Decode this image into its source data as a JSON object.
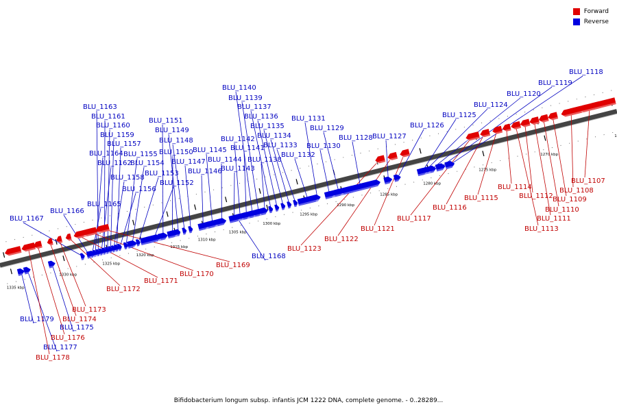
{
  "legend": {
    "forward_label": "Forward",
    "reverse_label": "Reverse",
    "forward_color": "#e00000",
    "reverse_color": "#0000e0"
  },
  "label_colors": {
    "forward": "#c00000",
    "reverse": "#0000c0"
  },
  "caption": "Bifidobacterium longum subsp. infantis JCM 1222 DNA, complete genome. - 0..28289...",
  "ruler": [
    {
      "text": "1265 kbp",
      "pos": 0.0
    },
    {
      "text": "1270 kbp",
      "pos": 0.12
    },
    {
      "text": "1275 kbp",
      "pos": 0.22
    },
    {
      "text": "1280 kbp",
      "pos": 0.31
    },
    {
      "text": "1285 kbp",
      "pos": 0.38
    },
    {
      "text": "1290 kbp",
      "pos": 0.45
    },
    {
      "text": "1295 kbp",
      "pos": 0.51
    },
    {
      "text": "1300 kbp",
      "pos": 0.57
    },
    {
      "text": "1305 kbp",
      "pos": 0.625
    },
    {
      "text": "1310 kbp",
      "pos": 0.675
    },
    {
      "text": "1315 kbp",
      "pos": 0.72
    },
    {
      "text": "1320 kbp",
      "pos": 0.775
    },
    {
      "text": "1325 kbp",
      "pos": 0.83
    },
    {
      "text": "1330 kbp",
      "pos": 0.9
    },
    {
      "text": "1335 kbp",
      "pos": 0.985
    }
  ],
  "features": [
    {
      "label": "BLU_1107",
      "strand": "forward"
    },
    {
      "label": "BLU_1108",
      "strand": "forward"
    },
    {
      "label": "BLU_1109",
      "strand": "forward"
    },
    {
      "label": "BLU_1110",
      "strand": "forward"
    },
    {
      "label": "BLU_1111",
      "strand": "forward"
    },
    {
      "label": "BLU_1112",
      "strand": "forward"
    },
    {
      "label": "BLU_1113",
      "strand": "forward"
    },
    {
      "label": "BLU_1114",
      "strand": "forward"
    },
    {
      "label": "BLU_1115",
      "strand": "forward"
    },
    {
      "label": "BLU_1116",
      "strand": "forward"
    },
    {
      "label": "BLU_1117",
      "strand": "forward"
    },
    {
      "label": "BLU_1118",
      "strand": "reverse"
    },
    {
      "label": "BLU_1119",
      "strand": "reverse"
    },
    {
      "label": "BLU_1120",
      "strand": "reverse"
    },
    {
      "label": "BLU_1121",
      "strand": "forward"
    },
    {
      "label": "BLU_1122",
      "strand": "forward"
    },
    {
      "label": "BLU_1123",
      "strand": "forward"
    },
    {
      "label": "BLU_1124",
      "strand": "reverse"
    },
    {
      "label": "BLU_1125",
      "strand": "reverse"
    },
    {
      "label": "BLU_1126",
      "strand": "reverse"
    },
    {
      "label": "BLU_1127",
      "strand": "reverse"
    },
    {
      "label": "BLU_1128",
      "strand": "reverse"
    },
    {
      "label": "BLU_1129",
      "strand": "reverse"
    },
    {
      "label": "BLU_1130",
      "strand": "reverse"
    },
    {
      "label": "BLU_1131",
      "strand": "reverse"
    },
    {
      "label": "BLU_1132",
      "strand": "reverse"
    },
    {
      "label": "BLU_1133",
      "strand": "reverse"
    },
    {
      "label": "BLU_1134",
      "strand": "reverse"
    },
    {
      "label": "BLU_1135",
      "strand": "reverse"
    },
    {
      "label": "BLU_1136",
      "strand": "reverse"
    },
    {
      "label": "BLU_1137",
      "strand": "reverse"
    },
    {
      "label": "BLU_1138",
      "strand": "reverse"
    },
    {
      "label": "BLU_1139",
      "strand": "reverse"
    },
    {
      "label": "BLU_1140",
      "strand": "reverse"
    },
    {
      "label": "BLU_1141",
      "strand": "reverse"
    },
    {
      "label": "BLU_1142",
      "strand": "reverse"
    },
    {
      "label": "BLU_1143",
      "strand": "reverse"
    },
    {
      "label": "BLU_1144",
      "strand": "reverse"
    },
    {
      "label": "BLU_1145",
      "strand": "reverse"
    },
    {
      "label": "BLU_1146",
      "strand": "reverse"
    },
    {
      "label": "BLU_1147",
      "strand": "reverse"
    },
    {
      "label": "BLU_1148",
      "strand": "reverse"
    },
    {
      "label": "BLU_1149",
      "strand": "reverse"
    },
    {
      "label": "BLU_1150",
      "strand": "reverse"
    },
    {
      "label": "BLU_1151",
      "strand": "reverse"
    },
    {
      "label": "BLU_1152",
      "strand": "reverse"
    },
    {
      "label": "BLU_1153",
      "strand": "reverse"
    },
    {
      "label": "BLU_1154",
      "strand": "reverse"
    },
    {
      "label": "BLU_1155",
      "strand": "reverse"
    },
    {
      "label": "BLU_1156",
      "strand": "reverse"
    },
    {
      "label": "BLU_1157",
      "strand": "reverse"
    },
    {
      "label": "BLU_1158",
      "strand": "reverse"
    },
    {
      "label": "BLU_1159",
      "strand": "reverse"
    },
    {
      "label": "BLU_1160",
      "strand": "reverse"
    },
    {
      "label": "BLU_1161",
      "strand": "reverse"
    },
    {
      "label": "BLU_1162",
      "strand": "reverse"
    },
    {
      "label": "BLU_1163",
      "strand": "reverse"
    },
    {
      "label": "BLU_1164",
      "strand": "reverse"
    },
    {
      "label": "BLU_1165",
      "strand": "reverse"
    },
    {
      "label": "BLU_1166",
      "strand": "reverse"
    },
    {
      "label": "BLU_1167",
      "strand": "reverse"
    },
    {
      "label": "BLU_1168",
      "strand": "reverse"
    },
    {
      "label": "BLU_1169",
      "strand": "forward"
    },
    {
      "label": "BLU_1170",
      "strand": "forward"
    },
    {
      "label": "BLU_1171",
      "strand": "forward"
    },
    {
      "label": "BLU_1172",
      "strand": "forward"
    },
    {
      "label": "BLU_1173",
      "strand": "forward"
    },
    {
      "label": "BLU_1174",
      "strand": "forward"
    },
    {
      "label": "BLU_1175",
      "strand": "reverse"
    },
    {
      "label": "BLU_1176",
      "strand": "forward"
    },
    {
      "label": "BLU_1177",
      "strand": "reverse"
    },
    {
      "label": "BLU_1178",
      "strand": "forward"
    },
    {
      "label": "BLU_1179",
      "strand": "reverse"
    }
  ]
}
